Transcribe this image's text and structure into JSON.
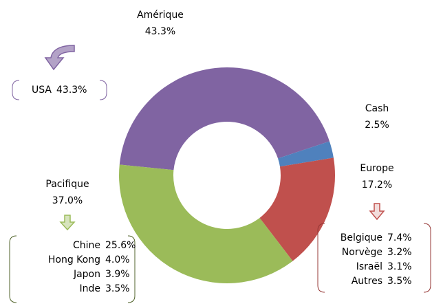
{
  "chart_data": {
    "type": "donut",
    "categories": [
      "Amérique",
      "Cash",
      "Europe",
      "Pacifique"
    ],
    "values": [
      43.3,
      2.5,
      17.2,
      37.0
    ],
    "value_labels": [
      "43.3%",
      "2.5%",
      "17.2%",
      "37.0%"
    ],
    "colors": [
      "#8064a2",
      "#4f81bd",
      "#c0504d",
      "#9bbb59"
    ],
    "details": [
      {
        "names": [
          "USA"
        ],
        "values": [
          43.3
        ],
        "value_labels": [
          "43.3%"
        ]
      },
      {
        "names": [
          "Chine",
          "Hong Kong",
          "Japon",
          "Inde"
        ],
        "values": [
          25.6,
          4.0,
          3.9,
          3.5
        ],
        "value_labels": [
          "25.6%",
          "4.0%",
          "3.9%",
          "3.5%"
        ]
      },
      {
        "names": [
          "Belgique",
          "Norvège",
          "Israël",
          "Autres"
        ],
        "values": [
          7.4,
          3.2,
          3.1,
          3.5
        ],
        "value_labels": [
          "7.4%",
          "3.2%",
          "3.1%",
          "3.5%"
        ]
      }
    ]
  }
}
